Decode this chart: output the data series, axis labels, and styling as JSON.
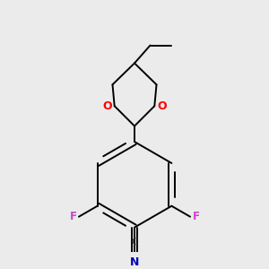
{
  "background_color": "#ebebeb",
  "bond_color": "#000000",
  "atom_colors": {
    "O": "#ff0000",
    "F": "#cc44cc",
    "N": "#0000bb",
    "C": "#000000"
  },
  "figsize": [
    3.0,
    3.0
  ],
  "dpi": 100
}
